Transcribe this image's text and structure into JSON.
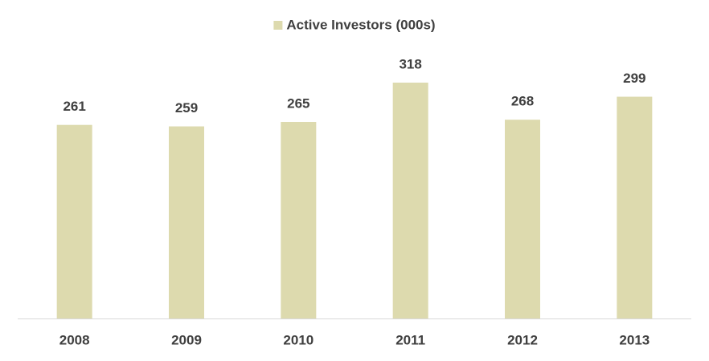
{
  "chart_data": {
    "type": "bar",
    "categories": [
      "2008",
      "2009",
      "2010",
      "2011",
      "2012",
      "2013"
    ],
    "series": [
      {
        "name": "Active Investors (000s)",
        "color": "#dddaae",
        "values": [
          261,
          259,
          265,
          318,
          268,
          299
        ]
      }
    ],
    "legend": "top"
  }
}
